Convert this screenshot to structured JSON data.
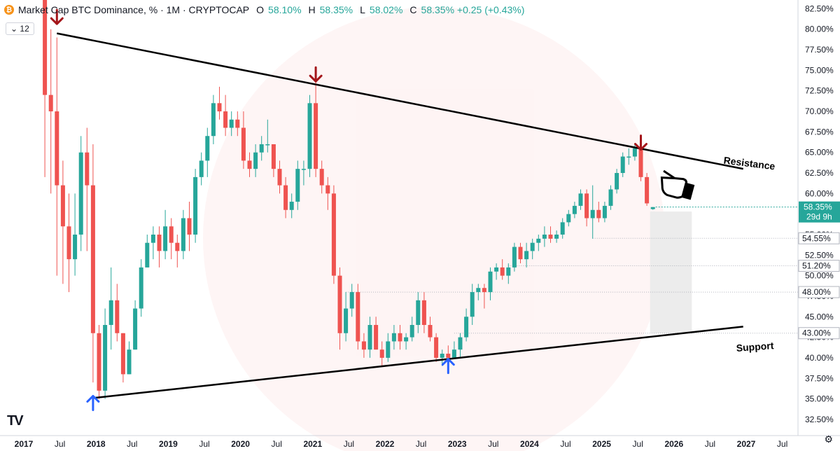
{
  "header": {
    "symbol": "Market Cap BTC Dominance, % · 1M · CRYPTOCAP",
    "btc_icon": "btc-coin-icon",
    "open_label": "O",
    "open": "58.10%",
    "high_label": "H",
    "high": "58.35%",
    "low_label": "L",
    "low": "58.02%",
    "close_label": "C",
    "close": "58.35% +0.25 (+0.43%)",
    "chevron_icon": "chevron-down-icon",
    "interval_count": "12"
  },
  "price_tag": {
    "value": "58.35%",
    "countdown": "29d 9h",
    "color": "#26a69a"
  },
  "level_tags": [
    "54.55%",
    "51.20%",
    "48.00%",
    "43.00%"
  ],
  "annotations": {
    "resistance": "Resistance",
    "support": "Support",
    "hand_icon": "pointing-hand-icon"
  },
  "bottom_right": {
    "settings_icon": "gear-icon"
  },
  "colors": {
    "up": "#26a69a",
    "down": "#ef5350",
    "arrow_down": "#a4161a",
    "arrow_up": "#2962ff"
  },
  "chart_data": {
    "type": "candlestick",
    "title": "Market Cap BTC Dominance, % · 1M · CRYPTOCAP",
    "y_unit": "%",
    "ylim": [
      32.5,
      83.5
    ],
    "y_ticks": [
      "32.50%",
      "35.00%",
      "37.50%",
      "40.00%",
      "42.50%",
      "45.00%",
      "47.50%",
      "50.00%",
      "52.50%",
      "55.00%",
      "57.50%",
      "60.00%",
      "62.50%",
      "65.00%",
      "67.50%",
      "70.00%",
      "72.50%",
      "75.00%",
      "77.50%",
      "80.00%",
      "82.50%"
    ],
    "x_ticks": [
      "2017",
      "Jul",
      "2018",
      "Jul",
      "2019",
      "Jul",
      "2020",
      "Jul",
      "2021",
      "Jul",
      "2022",
      "Jul",
      "2023",
      "Jul",
      "2024",
      "Jul",
      "2025",
      "Jul",
      "2026",
      "Jul",
      "2027",
      "Jul"
    ],
    "x_range": [
      "2017-01",
      "2027-08"
    ],
    "candles": [
      {
        "t": "2017-04",
        "o": 84,
        "h": 85,
        "l": 62,
        "c": 72
      },
      {
        "t": "2017-05",
        "o": 72,
        "h": 80,
        "l": 60,
        "c": 70
      },
      {
        "t": "2017-06",
        "o": 70,
        "h": 79,
        "l": 50,
        "c": 61
      },
      {
        "t": "2017-07",
        "o": 61,
        "h": 64,
        "l": 49,
        "c": 56
      },
      {
        "t": "2017-08",
        "o": 56,
        "h": 60,
        "l": 48,
        "c": 52
      },
      {
        "t": "2017-09",
        "o": 52,
        "h": 60,
        "l": 50,
        "c": 55
      },
      {
        "t": "2017-10",
        "o": 55,
        "h": 67,
        "l": 53,
        "c": 65
      },
      {
        "t": "2017-11",
        "o": 65,
        "h": 68,
        "l": 53,
        "c": 61
      },
      {
        "t": "2017-12",
        "o": 61,
        "h": 66,
        "l": 37,
        "c": 43
      },
      {
        "t": "2018-01",
        "o": 43,
        "h": 44,
        "l": 35,
        "c": 36
      },
      {
        "t": "2018-02",
        "o": 36,
        "h": 46,
        "l": 35,
        "c": 44
      },
      {
        "t": "2018-03",
        "o": 44,
        "h": 51,
        "l": 41,
        "c": 47
      },
      {
        "t": "2018-04",
        "o": 47,
        "h": 49,
        "l": 42,
        "c": 43
      },
      {
        "t": "2018-05",
        "o": 43,
        "h": 43,
        "l": 37,
        "c": 38
      },
      {
        "t": "2018-06",
        "o": 38,
        "h": 42,
        "l": 38,
        "c": 41
      },
      {
        "t": "2018-07",
        "o": 41,
        "h": 47,
        "l": 41,
        "c": 46
      },
      {
        "t": "2018-08",
        "o": 46,
        "h": 52,
        "l": 45,
        "c": 51
      },
      {
        "t": "2018-09",
        "o": 51,
        "h": 55,
        "l": 51,
        "c": 54
      },
      {
        "t": "2018-10",
        "o": 54,
        "h": 56,
        "l": 52,
        "c": 55
      },
      {
        "t": "2018-11",
        "o": 55,
        "h": 56,
        "l": 51,
        "c": 53
      },
      {
        "t": "2018-12",
        "o": 53,
        "h": 58,
        "l": 52,
        "c": 56
      },
      {
        "t": "2019-01",
        "o": 56,
        "h": 57,
        "l": 52,
        "c": 54
      },
      {
        "t": "2019-02",
        "o": 54,
        "h": 55,
        "l": 51,
        "c": 53
      },
      {
        "t": "2019-03",
        "o": 53,
        "h": 58,
        "l": 52,
        "c": 57
      },
      {
        "t": "2019-04",
        "o": 57,
        "h": 59,
        "l": 53,
        "c": 55
      },
      {
        "t": "2019-05",
        "o": 55,
        "h": 63,
        "l": 54,
        "c": 62
      },
      {
        "t": "2019-06",
        "o": 62,
        "h": 65,
        "l": 61,
        "c": 64
      },
      {
        "t": "2019-07",
        "o": 64,
        "h": 68,
        "l": 62,
        "c": 67
      },
      {
        "t": "2019-08",
        "o": 67,
        "h": 72,
        "l": 66,
        "c": 71
      },
      {
        "t": "2019-09",
        "o": 71,
        "h": 73,
        "l": 69,
        "c": 70
      },
      {
        "t": "2019-10",
        "o": 70,
        "h": 72,
        "l": 67,
        "c": 68
      },
      {
        "t": "2019-11",
        "o": 68,
        "h": 70,
        "l": 67,
        "c": 69
      },
      {
        "t": "2019-12",
        "o": 69,
        "h": 70,
        "l": 67,
        "c": 68
      },
      {
        "t": "2020-01",
        "o": 68,
        "h": 70,
        "l": 63,
        "c": 64
      },
      {
        "t": "2020-02",
        "o": 64,
        "h": 65,
        "l": 62,
        "c": 63
      },
      {
        "t": "2020-03",
        "o": 63,
        "h": 66,
        "l": 62,
        "c": 65
      },
      {
        "t": "2020-04",
        "o": 65,
        "h": 67,
        "l": 64,
        "c": 66
      },
      {
        "t": "2020-05",
        "o": 66,
        "h": 69,
        "l": 65,
        "c": 66
      },
      {
        "t": "2020-06",
        "o": 66,
        "h": 66,
        "l": 62,
        "c": 63
      },
      {
        "t": "2020-07",
        "o": 63,
        "h": 64,
        "l": 60,
        "c": 61
      },
      {
        "t": "2020-08",
        "o": 61,
        "h": 62,
        "l": 57,
        "c": 58
      },
      {
        "t": "2020-09",
        "o": 58,
        "h": 60,
        "l": 57,
        "c": 59
      },
      {
        "t": "2020-10",
        "o": 59,
        "h": 64,
        "l": 58,
        "c": 63
      },
      {
        "t": "2020-11",
        "o": 63,
        "h": 64,
        "l": 61,
        "c": 63
      },
      {
        "t": "2020-12",
        "o": 63,
        "h": 72,
        "l": 62,
        "c": 71
      },
      {
        "t": "2021-01",
        "o": 71,
        "h": 74,
        "l": 62,
        "c": 63
      },
      {
        "t": "2021-02",
        "o": 63,
        "h": 64,
        "l": 60,
        "c": 61
      },
      {
        "t": "2021-03",
        "o": 61,
        "h": 62,
        "l": 58,
        "c": 60
      },
      {
        "t": "2021-04",
        "o": 60,
        "h": 61,
        "l": 49,
        "c": 50
      },
      {
        "t": "2021-05",
        "o": 50,
        "h": 51,
        "l": 41,
        "c": 43
      },
      {
        "t": "2021-06",
        "o": 43,
        "h": 48,
        "l": 42,
        "c": 46
      },
      {
        "t": "2021-07",
        "o": 46,
        "h": 49,
        "l": 45,
        "c": 48
      },
      {
        "t": "2021-08",
        "o": 48,
        "h": 49,
        "l": 41,
        "c": 42
      },
      {
        "t": "2021-09",
        "o": 42,
        "h": 43,
        "l": 40,
        "c": 41
      },
      {
        "t": "2021-10",
        "o": 41,
        "h": 45,
        "l": 40,
        "c": 44
      },
      {
        "t": "2021-11",
        "o": 44,
        "h": 45,
        "l": 41,
        "c": 41
      },
      {
        "t": "2021-12",
        "o": 41,
        "h": 42,
        "l": 39,
        "c": 40
      },
      {
        "t": "2022-01",
        "o": 40,
        "h": 43,
        "l": 39.5,
        "c": 42
      },
      {
        "t": "2022-02",
        "o": 42,
        "h": 44,
        "l": 41,
        "c": 43
      },
      {
        "t": "2022-03",
        "o": 43,
        "h": 44,
        "l": 41,
        "c": 42
      },
      {
        "t": "2022-04",
        "o": 42,
        "h": 43,
        "l": 41,
        "c": 42.5
      },
      {
        "t": "2022-05",
        "o": 42.5,
        "h": 45,
        "l": 42,
        "c": 44
      },
      {
        "t": "2022-06",
        "o": 44,
        "h": 48,
        "l": 43,
        "c": 47
      },
      {
        "t": "2022-07",
        "o": 47,
        "h": 48,
        "l": 43,
        "c": 44
      },
      {
        "t": "2022-08",
        "o": 44,
        "h": 45,
        "l": 42,
        "c": 42.5
      },
      {
        "t": "2022-09",
        "o": 42.5,
        "h": 43,
        "l": 39.5,
        "c": 40
      },
      {
        "t": "2022-10",
        "o": 40,
        "h": 41,
        "l": 39,
        "c": 40.5
      },
      {
        "t": "2022-11",
        "o": 40.5,
        "h": 41.5,
        "l": 39.5,
        "c": 40
      },
      {
        "t": "2022-12",
        "o": 40,
        "h": 42,
        "l": 40,
        "c": 41
      },
      {
        "t": "2023-01",
        "o": 41,
        "h": 43,
        "l": 40,
        "c": 42.5
      },
      {
        "t": "2023-02",
        "o": 42.5,
        "h": 46,
        "l": 42,
        "c": 45
      },
      {
        "t": "2023-03",
        "o": 45,
        "h": 49,
        "l": 44,
        "c": 48
      },
      {
        "t": "2023-04",
        "o": 48,
        "h": 49,
        "l": 47,
        "c": 48.5
      },
      {
        "t": "2023-05",
        "o": 48.5,
        "h": 49,
        "l": 46,
        "c": 48
      },
      {
        "t": "2023-06",
        "o": 48,
        "h": 51,
        "l": 47,
        "c": 50.5
      },
      {
        "t": "2023-07",
        "o": 50.5,
        "h": 51.5,
        "l": 49.5,
        "c": 51
      },
      {
        "t": "2023-08",
        "o": 51,
        "h": 52,
        "l": 49.5,
        "c": 50
      },
      {
        "t": "2023-09",
        "o": 50,
        "h": 51.5,
        "l": 49,
        "c": 51
      },
      {
        "t": "2023-10",
        "o": 51,
        "h": 54,
        "l": 50.5,
        "c": 53.5
      },
      {
        "t": "2023-11",
        "o": 53.5,
        "h": 54,
        "l": 51.5,
        "c": 52
      },
      {
        "t": "2023-12",
        "o": 52,
        "h": 54,
        "l": 51,
        "c": 53
      },
      {
        "t": "2024-01",
        "o": 53,
        "h": 54.5,
        "l": 52,
        "c": 54
      },
      {
        "t": "2024-02",
        "o": 54,
        "h": 55,
        "l": 53,
        "c": 54.5
      },
      {
        "t": "2024-03",
        "o": 54.5,
        "h": 56,
        "l": 53.5,
        "c": 55
      },
      {
        "t": "2024-04",
        "o": 55,
        "h": 56,
        "l": 54,
        "c": 54.5
      },
      {
        "t": "2024-05",
        "o": 54.5,
        "h": 55.5,
        "l": 54,
        "c": 55
      },
      {
        "t": "2024-06",
        "o": 55,
        "h": 57,
        "l": 54.5,
        "c": 56.5
      },
      {
        "t": "2024-07",
        "o": 56.5,
        "h": 58,
        "l": 56,
        "c": 57.5
      },
      {
        "t": "2024-08",
        "o": 57.5,
        "h": 59,
        "l": 57,
        "c": 58.5
      },
      {
        "t": "2024-09",
        "o": 58.5,
        "h": 60.5,
        "l": 58,
        "c": 60
      },
      {
        "t": "2024-10",
        "o": 60,
        "h": 60.5,
        "l": 56,
        "c": 57
      },
      {
        "t": "2024-11",
        "o": 57,
        "h": 61,
        "l": 54.5,
        "c": 58
      },
      {
        "t": "2024-12",
        "o": 58,
        "h": 59,
        "l": 56.5,
        "c": 57
      },
      {
        "t": "2025-01",
        "o": 57,
        "h": 59,
        "l": 56.5,
        "c": 58.5
      },
      {
        "t": "2025-02",
        "o": 58.5,
        "h": 61,
        "l": 58,
        "c": 60.5
      },
      {
        "t": "2025-03",
        "o": 60.5,
        "h": 63,
        "l": 60,
        "c": 62.5
      },
      {
        "t": "2025-04",
        "o": 62.5,
        "h": 65,
        "l": 62,
        "c": 64.5
      },
      {
        "t": "2025-05",
        "o": 64.5,
        "h": 65.5,
        "l": 63.5,
        "c": 64.5
      },
      {
        "t": "2025-06",
        "o": 64.5,
        "h": 66,
        "l": 64,
        "c": 65.5
      },
      {
        "t": "2025-07",
        "o": 65.5,
        "h": 65.5,
        "l": 61.5,
        "c": 62
      },
      {
        "t": "2025-08",
        "o": 62,
        "h": 62.5,
        "l": 58.5,
        "c": 58.8
      },
      {
        "t": "2025-09",
        "o": 58.1,
        "h": 58.35,
        "l": 58.02,
        "c": 58.35
      }
    ],
    "trendlines": [
      {
        "name": "Resistance",
        "from": {
          "t": "2017-06",
          "y": 79.5
        },
        "to": {
          "t": "2026-12",
          "y": 63.0
        }
      },
      {
        "name": "Support",
        "from": {
          "t": "2017-12",
          "y": 35.1
        },
        "to": {
          "t": "2026-12",
          "y": 43.8
        }
      }
    ],
    "horizontal_levels": [
      {
        "value": 54.55,
        "from": "2024-11"
      },
      {
        "value": 51.2,
        "from": "2023-09"
      },
      {
        "value": 48.0,
        "from": "2021-06"
      },
      {
        "value": 43.0,
        "from": "2022-12"
      }
    ],
    "projection_box": {
      "t_from": "2025-09",
      "t_to": "2026-03",
      "y_from": 43.0,
      "y_to": 57.8
    },
    "arrows": [
      {
        "dir": "down",
        "t": "2017-06",
        "y": 81.5
      },
      {
        "dir": "down",
        "t": "2021-01",
        "y": 74.5
      },
      {
        "dir": "down",
        "t": "2025-07",
        "y": 66.2
      },
      {
        "dir": "up",
        "t": "2017-12",
        "y": 34.5
      },
      {
        "dir": "up",
        "t": "2022-11",
        "y": 39.0
      }
    ]
  }
}
